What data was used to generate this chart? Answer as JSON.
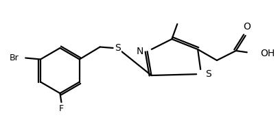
{
  "bg_color": "#ffffff",
  "line_color": "#000000",
  "line_width": 1.6,
  "font_size": 9,
  "figsize": [
    4.06,
    1.75
  ],
  "dpi": 100,
  "atoms": {
    "Br": "Br",
    "F": "F",
    "S_ext": "S",
    "N": "N",
    "S_thz": "S",
    "O_carbonyl": "O",
    "OH": "OH"
  }
}
